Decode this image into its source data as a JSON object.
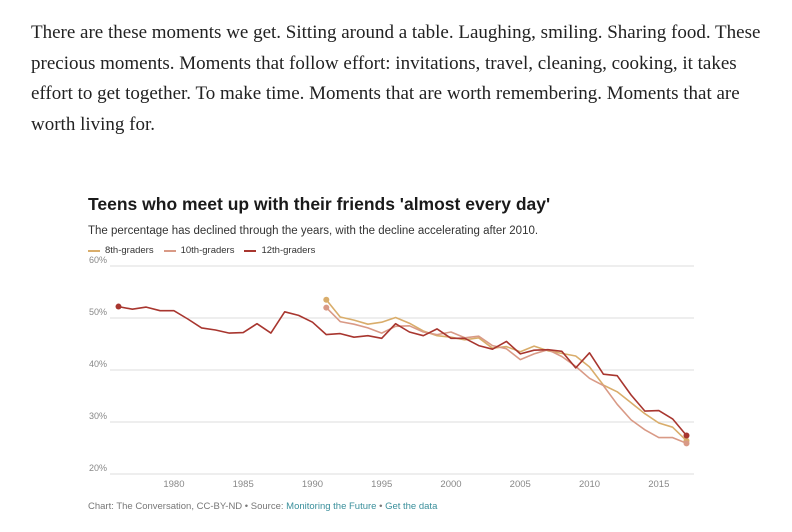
{
  "article": {
    "paragraph": "There are these moments we get. Sitting around a table. Laughing, smiling. Sharing food. These precious moments. Moments that follow effort: invitations, travel, cleaning, cooking, it takes effort to get together. To make time. Moments that are worth remembering. Moments that are worth living for."
  },
  "footer": {
    "credit": "Chart: The Conversation, CC-BY-ND • Source: ",
    "source_link": "Monitoring the Future",
    "separator": " • ",
    "data_link": "Get the data"
  },
  "colors": {
    "grade8": "#d9ad6b",
    "grade10": "#d99a86",
    "grade12": "#a8362f",
    "grid": "#dddddd",
    "axis_text": "#888888"
  },
  "chart_data": {
    "type": "line",
    "title": "Teens who meet up with their friends 'almost every day'",
    "subtitle": "The percentage has declined through the years, with the decline accelerating after 2010.",
    "xlabel": "",
    "ylabel": "",
    "xlim": [
      1975,
      2018
    ],
    "ylim": [
      20,
      60
    ],
    "yticks": [
      20,
      30,
      40,
      50,
      60
    ],
    "ytick_labels": [
      "20%",
      "30%",
      "40%",
      "50%",
      "60%"
    ],
    "xticks": [
      1980,
      1985,
      1990,
      1995,
      2000,
      2005,
      2010,
      2015
    ],
    "xtick_labels": [
      "1980",
      "1985",
      "1990",
      "1995",
      "2000",
      "2005",
      "2010",
      "2015"
    ],
    "grid": true,
    "legend_position": "top-left",
    "series": [
      {
        "name": "8th-graders",
        "color_key": "grade8",
        "x": [
          1991,
          1992,
          1993,
          1994,
          1995,
          1996,
          1997,
          1998,
          1999,
          2000,
          2001,
          2002,
          2003,
          2004,
          2005,
          2006,
          2007,
          2008,
          2009,
          2010,
          2011,
          2012,
          2013,
          2014,
          2015,
          2016,
          2017
        ],
        "y": [
          53.5,
          50.2,
          49.6,
          48.8,
          49.2,
          50.1,
          49.0,
          47.5,
          46.6,
          46.3,
          45.8,
          46.2,
          44.2,
          44.5,
          43.5,
          44.6,
          43.7,
          43.2,
          42.7,
          40.6,
          37.1,
          35.8,
          33.7,
          31.6,
          29.8,
          29.0,
          26.4
        ]
      },
      {
        "name": "10th-graders",
        "color_key": "grade10",
        "x": [
          1991,
          1992,
          1993,
          1994,
          1995,
          1996,
          1997,
          1998,
          1999,
          2000,
          2001,
          2002,
          2003,
          2004,
          2005,
          2006,
          2007,
          2008,
          2009,
          2010,
          2011,
          2012,
          2013,
          2014,
          2015,
          2016,
          2017
        ],
        "y": [
          52.0,
          49.3,
          48.8,
          48.1,
          47.1,
          48.4,
          48.5,
          47.3,
          46.8,
          47.3,
          46.2,
          46.5,
          44.7,
          44.1,
          42.0,
          43.1,
          43.9,
          42.6,
          40.7,
          38.4,
          37.0,
          33.4,
          30.4,
          28.5,
          27.0,
          27.0,
          25.9
        ]
      },
      {
        "name": "12th-graders",
        "color_key": "grade12",
        "x": [
          1976,
          1977,
          1978,
          1979,
          1980,
          1981,
          1982,
          1983,
          1984,
          1985,
          1986,
          1987,
          1988,
          1989,
          1990,
          1991,
          1992,
          1993,
          1994,
          1995,
          1996,
          1997,
          1998,
          1999,
          2000,
          2001,
          2002,
          2003,
          2004,
          2005,
          2006,
          2007,
          2008,
          2009,
          2010,
          2011,
          2012,
          2013,
          2014,
          2015,
          2016,
          2017
        ],
        "y": [
          52.2,
          51.7,
          52.1,
          51.4,
          51.4,
          49.8,
          48.1,
          47.7,
          47.1,
          47.2,
          48.9,
          47.1,
          51.2,
          50.5,
          49.2,
          46.8,
          47.0,
          46.3,
          46.6,
          46.1,
          48.9,
          47.3,
          46.6,
          47.9,
          46.1,
          46.1,
          44.7,
          44.0,
          45.5,
          43.1,
          43.8,
          43.9,
          43.6,
          40.4,
          43.3,
          39.2,
          38.9,
          35.2,
          32.1,
          32.2,
          30.6,
          27.4
        ]
      }
    ]
  }
}
